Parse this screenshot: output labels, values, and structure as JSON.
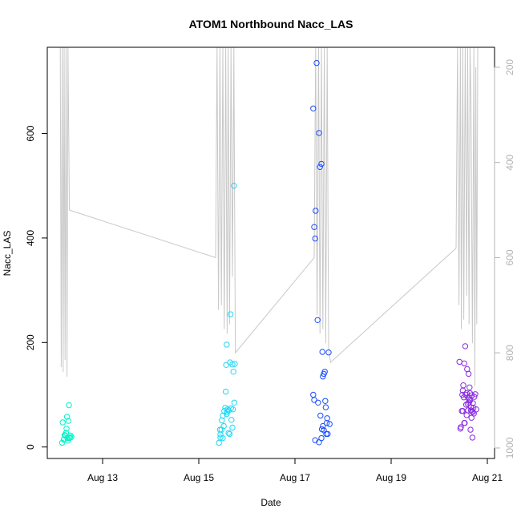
{
  "chart_data": {
    "type": "scatter",
    "title": "ATOM1 Northbound Nacc_LAS",
    "xlabel": "Date",
    "ylabel": "Nacc_LAS",
    "x_ticks": [
      "Aug 13",
      "Aug 15",
      "Aug 17",
      "Aug 19",
      "Aug 21"
    ],
    "x_tick_values": [
      13,
      15,
      17,
      19,
      21
    ],
    "xlim": [
      11.85,
      21.15
    ],
    "y_ticks": [
      0,
      200,
      400,
      600
    ],
    "ylim": [
      -22,
      765
    ],
    "y2_ticks": [
      200,
      400,
      600,
      800,
      1000
    ],
    "y2lim": [
      1022,
      158
    ],
    "colors": {
      "points": [
        "#00ffd5",
        "#00dcff",
        "#0a3aff",
        "#8a2be2"
      ],
      "line": "#c8c8c8",
      "axis": "#000000",
      "axis_right": "#b3b3b3"
    },
    "series": [
      {
        "color": "#00f5c8",
        "points": [
          [
            12.16,
            8
          ],
          [
            12.19,
            14
          ],
          [
            12.21,
            23
          ],
          [
            12.23,
            22
          ],
          [
            12.24,
            27
          ],
          [
            12.25,
            35
          ],
          [
            12.26,
            58
          ],
          [
            12.27,
            17
          ],
          [
            12.29,
            50
          ],
          [
            12.3,
            80
          ],
          [
            12.31,
            17
          ],
          [
            12.32,
            18
          ],
          [
            12.17,
            47
          ],
          [
            12.22,
            22
          ],
          [
            12.28,
            12
          ],
          [
            12.33,
            22
          ],
          [
            12.2,
            15
          ],
          [
            12.35,
            19
          ]
        ]
      },
      {
        "color": "#1fd8f5",
        "points": [
          [
            15.42,
            8
          ],
          [
            15.45,
            18
          ],
          [
            15.47,
            33
          ],
          [
            15.48,
            51
          ],
          [
            15.5,
            60
          ],
          [
            15.52,
            40
          ],
          [
            15.53,
            69
          ],
          [
            15.55,
            75
          ],
          [
            15.56,
            106
          ],
          [
            15.57,
            157
          ],
          [
            15.58,
            196
          ],
          [
            15.59,
            67
          ],
          [
            15.6,
            72
          ],
          [
            15.62,
            70
          ],
          [
            15.64,
            25
          ],
          [
            15.65,
            162
          ],
          [
            15.66,
            254
          ],
          [
            15.68,
            52
          ],
          [
            15.7,
            158
          ],
          [
            15.71,
            72
          ],
          [
            15.72,
            144
          ],
          [
            15.73,
            500
          ],
          [
            15.74,
            85
          ],
          [
            15.75,
            159
          ],
          [
            15.45,
            24
          ],
          [
            15.5,
            17
          ],
          [
            15.62,
            27
          ],
          [
            15.67,
            74
          ],
          [
            15.7,
            37
          ],
          [
            15.44,
            33
          ],
          [
            15.58,
            63
          ]
        ]
      },
      {
        "color": "#1a4dff",
        "points": [
          [
            17.38,
            648
          ],
          [
            17.4,
            421
          ],
          [
            17.42,
            399
          ],
          [
            17.43,
            452
          ],
          [
            17.45,
            735
          ],
          [
            17.47,
            243
          ],
          [
            17.48,
            85
          ],
          [
            17.5,
            601
          ],
          [
            17.52,
            536
          ],
          [
            17.53,
            60
          ],
          [
            17.55,
            542
          ],
          [
            17.56,
            34
          ],
          [
            17.57,
            182
          ],
          [
            17.58,
            135
          ],
          [
            17.6,
            140
          ],
          [
            17.62,
            144
          ],
          [
            17.63,
            88
          ],
          [
            17.64,
            76
          ],
          [
            17.65,
            25
          ],
          [
            17.66,
            46
          ],
          [
            17.67,
            55
          ],
          [
            17.68,
            25
          ],
          [
            17.7,
            181
          ],
          [
            17.72,
            44
          ],
          [
            17.42,
            13
          ],
          [
            17.5,
            9
          ],
          [
            17.55,
            17
          ],
          [
            17.6,
            32
          ],
          [
            17.38,
            100
          ],
          [
            17.4,
            90
          ],
          [
            17.58,
            40
          ]
        ]
      },
      {
        "color": "#8a2be2",
        "points": [
          [
            20.42,
            163
          ],
          [
            20.44,
            35
          ],
          [
            20.45,
            38
          ],
          [
            20.47,
            69
          ],
          [
            20.48,
            100
          ],
          [
            20.49,
            108
          ],
          [
            20.5,
            118
          ],
          [
            20.51,
            95
          ],
          [
            20.52,
            160
          ],
          [
            20.53,
            46
          ],
          [
            20.54,
            193
          ],
          [
            20.55,
            100
          ],
          [
            20.56,
            81
          ],
          [
            20.57,
            103
          ],
          [
            20.58,
            149
          ],
          [
            20.6,
            95
          ],
          [
            20.61,
            140
          ],
          [
            20.62,
            91
          ],
          [
            20.63,
            114
          ],
          [
            20.64,
            89
          ],
          [
            20.65,
            33
          ],
          [
            20.66,
            70
          ],
          [
            20.67,
            56
          ],
          [
            20.68,
            99
          ],
          [
            20.69,
            18
          ],
          [
            20.7,
            67
          ],
          [
            20.71,
            75
          ],
          [
            20.72,
            64
          ],
          [
            20.73,
            96
          ],
          [
            20.75,
            101
          ],
          [
            20.77,
            72
          ],
          [
            20.49,
            69
          ],
          [
            20.59,
            83
          ],
          [
            20.62,
            85
          ],
          [
            20.66,
            76
          ],
          [
            20.7,
            84
          ],
          [
            20.52,
            46
          ],
          [
            20.57,
            61
          ],
          [
            20.6,
            70
          ],
          [
            20.64,
            103
          ],
          [
            20.68,
            68
          ]
        ]
      }
    ],
    "line_series": {
      "axis": "right",
      "points": [
        [
          12.12,
          158
        ],
        [
          12.14,
          830
        ],
        [
          12.16,
          158
        ],
        [
          12.18,
          840
        ],
        [
          12.2,
          158
        ],
        [
          12.22,
          815
        ],
        [
          12.24,
          158
        ],
        [
          12.26,
          850
        ],
        [
          12.28,
          158
        ],
        [
          12.31,
          500
        ],
        [
          15.35,
          600
        ],
        [
          15.38,
          158
        ],
        [
          15.41,
          710
        ],
        [
          15.44,
          158
        ],
        [
          15.47,
          700
        ],
        [
          15.5,
          158
        ],
        [
          15.53,
          750
        ],
        [
          15.56,
          158
        ],
        [
          15.59,
          760
        ],
        [
          15.61,
          158
        ],
        [
          15.64,
          740
        ],
        [
          15.67,
          158
        ],
        [
          15.7,
          640
        ],
        [
          15.73,
          158
        ],
        [
          15.76,
          800
        ],
        [
          17.4,
          600
        ],
        [
          17.43,
          158
        ],
        [
          17.46,
          720
        ],
        [
          17.49,
          158
        ],
        [
          17.52,
          760
        ],
        [
          17.55,
          158
        ],
        [
          17.58,
          750
        ],
        [
          17.61,
          158
        ],
        [
          17.64,
          780
        ],
        [
          17.67,
          158
        ],
        [
          17.7,
          790
        ],
        [
          17.74,
          820
        ],
        [
          20.35,
          580
        ],
        [
          20.38,
          158
        ],
        [
          20.41,
          700
        ],
        [
          20.44,
          158
        ],
        [
          20.46,
          750
        ],
        [
          20.49,
          158
        ],
        [
          20.51,
          730
        ],
        [
          20.54,
          158
        ],
        [
          20.57,
          680
        ],
        [
          20.59,
          158
        ],
        [
          20.62,
          740
        ],
        [
          20.64,
          158
        ],
        [
          20.66,
          270
        ],
        [
          20.69,
          780
        ],
        [
          20.72,
          158
        ],
        [
          20.74,
          870
        ],
        [
          20.76,
          200
        ],
        [
          20.78,
          740
        ],
        [
          20.8,
          158
        ]
      ]
    }
  }
}
